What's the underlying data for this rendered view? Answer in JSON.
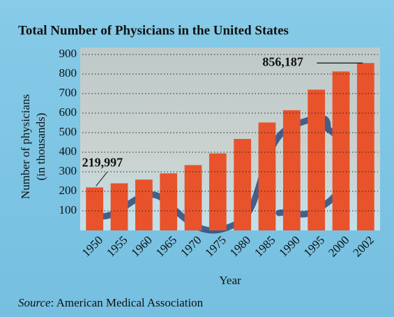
{
  "chart_data": {
    "type": "bar",
    "title": "Total Number of Physicians in the United States",
    "xlabel": "Year",
    "ylabel": [
      "Number of physicians",
      "(in thousands)"
    ],
    "categories": [
      "1950",
      "1955",
      "1960",
      "1965",
      "1970",
      "1975",
      "1980",
      "1985",
      "1990",
      "1995",
      "2000",
      "2002"
    ],
    "values": [
      219.997,
      241,
      260,
      292,
      334,
      394,
      468,
      552,
      615,
      720,
      813,
      856.187
    ],
    "value_labels": [
      "219,997",
      null,
      null,
      null,
      null,
      null,
      null,
      null,
      null,
      null,
      null,
      "856,187"
    ],
    "color": "#e8532b",
    "ylim": [
      0,
      900
    ],
    "yticks": [
      100,
      200,
      300,
      400,
      500,
      600,
      700,
      800,
      900
    ],
    "grid": true,
    "source_prefix": "Source",
    "source": ": American Medical Association"
  }
}
